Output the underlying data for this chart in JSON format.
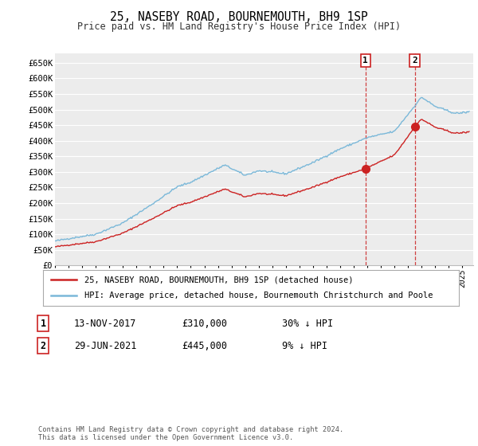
{
  "title": "25, NASEBY ROAD, BOURNEMOUTH, BH9 1SP",
  "subtitle": "Price paid vs. HM Land Registry's House Price Index (HPI)",
  "ylim": [
    0,
    680000
  ],
  "yticks": [
    0,
    50000,
    100000,
    150000,
    200000,
    250000,
    300000,
    350000,
    400000,
    450000,
    500000,
    550000,
    600000,
    650000
  ],
  "ytick_labels": [
    "£0",
    "£50K",
    "£100K",
    "£150K",
    "£200K",
    "£250K",
    "£300K",
    "£350K",
    "£400K",
    "£450K",
    "£500K",
    "£550K",
    "£600K",
    "£650K"
  ],
  "xlim_start": 1995.0,
  "xlim_end": 2025.8,
  "hpi_color": "#7ab8d9",
  "price_color": "#cc2222",
  "legend_label_price": "25, NASEBY ROAD, BOURNEMOUTH, BH9 1SP (detached house)",
  "legend_label_hpi": "HPI: Average price, detached house, Bournemouth Christchurch and Poole",
  "transaction1_label": "1",
  "transaction1_date": "13-NOV-2017",
  "transaction1_price": "£310,000",
  "transaction1_note": "30% ↓ HPI",
  "transaction1_year": 2017.87,
  "transaction1_value": 310000,
  "transaction2_label": "2",
  "transaction2_date": "29-JUN-2021",
  "transaction2_price": "£445,000",
  "transaction2_note": "9% ↓ HPI",
  "transaction2_year": 2021.49,
  "transaction2_value": 445000,
  "footer": "Contains HM Land Registry data © Crown copyright and database right 2024.\nThis data is licensed under the Open Government Licence v3.0.",
  "bg_color": "#ffffff",
  "plot_bg_color": "#ececec",
  "grid_color": "#ffffff"
}
